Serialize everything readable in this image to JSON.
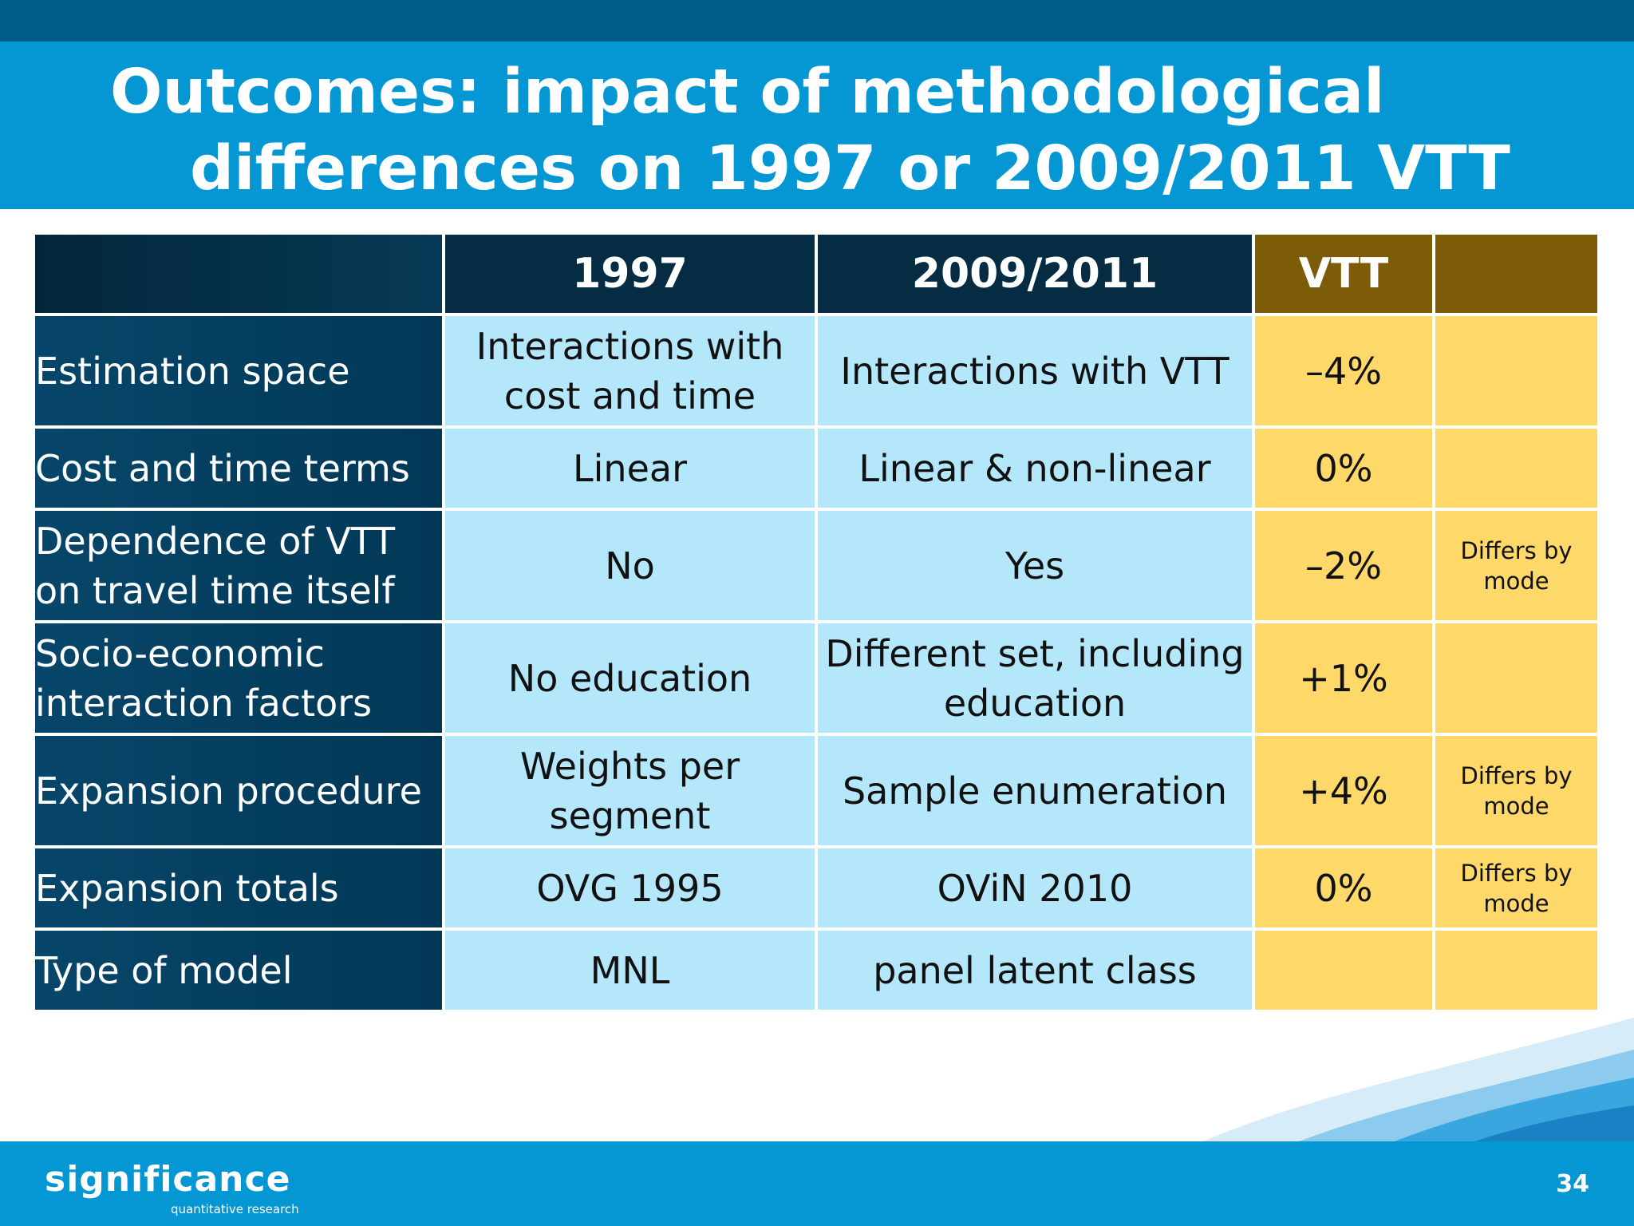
{
  "slide": {
    "title_line1": "Outcomes: impact of methodological",
    "title_line2": "differences on 1997 or 2009/2011 VTT",
    "page_number": "34"
  },
  "table": {
    "headers": [
      "",
      "1997",
      "2009/2011",
      "VTT",
      ""
    ],
    "rows": [
      {
        "label": "Estimation space",
        "y1997": "Interactions with cost and time",
        "y2009": "Interactions with VTT",
        "vtt": "–4%",
        "note": ""
      },
      {
        "label": "Cost and time terms",
        "y1997": "Linear",
        "y2009": "Linear & non-linear",
        "vtt": "0%",
        "note": ""
      },
      {
        "label": "Dependence of VTT on travel time itself",
        "y1997": "No",
        "y2009": "Yes",
        "vtt": "–2%",
        "note": "Differs by mode"
      },
      {
        "label": "Socio-economic interaction factors",
        "y1997": "No education",
        "y2009": "Different set, including education",
        "vtt": "+1%",
        "note": ""
      },
      {
        "label": "Expansion procedure",
        "y1997": "Weights per segment",
        "y2009": "Sample enumeration",
        "vtt": "+4%",
        "note": "Differs by mode"
      },
      {
        "label": "Expansion totals",
        "y1997": "OVG 1995",
        "y2009": "OViN 2010",
        "vtt": "0%",
        "note": "Differs by mode"
      },
      {
        "label": "Type of model",
        "y1997": "MNL",
        "y2009": "panel latent class",
        "vtt": "",
        "note": ""
      }
    ]
  },
  "logo": {
    "name": "significance",
    "tagline": "quantitative research"
  },
  "colors": {
    "title_bar": "#0596d4",
    "top_strip": "#005c86",
    "header_dark": "#052c42",
    "header_gold": "#7c5c06",
    "row_label": "#07466a",
    "cell_light_blue": "#b5e7fb",
    "cell_yellow": "#ffd86a"
  }
}
